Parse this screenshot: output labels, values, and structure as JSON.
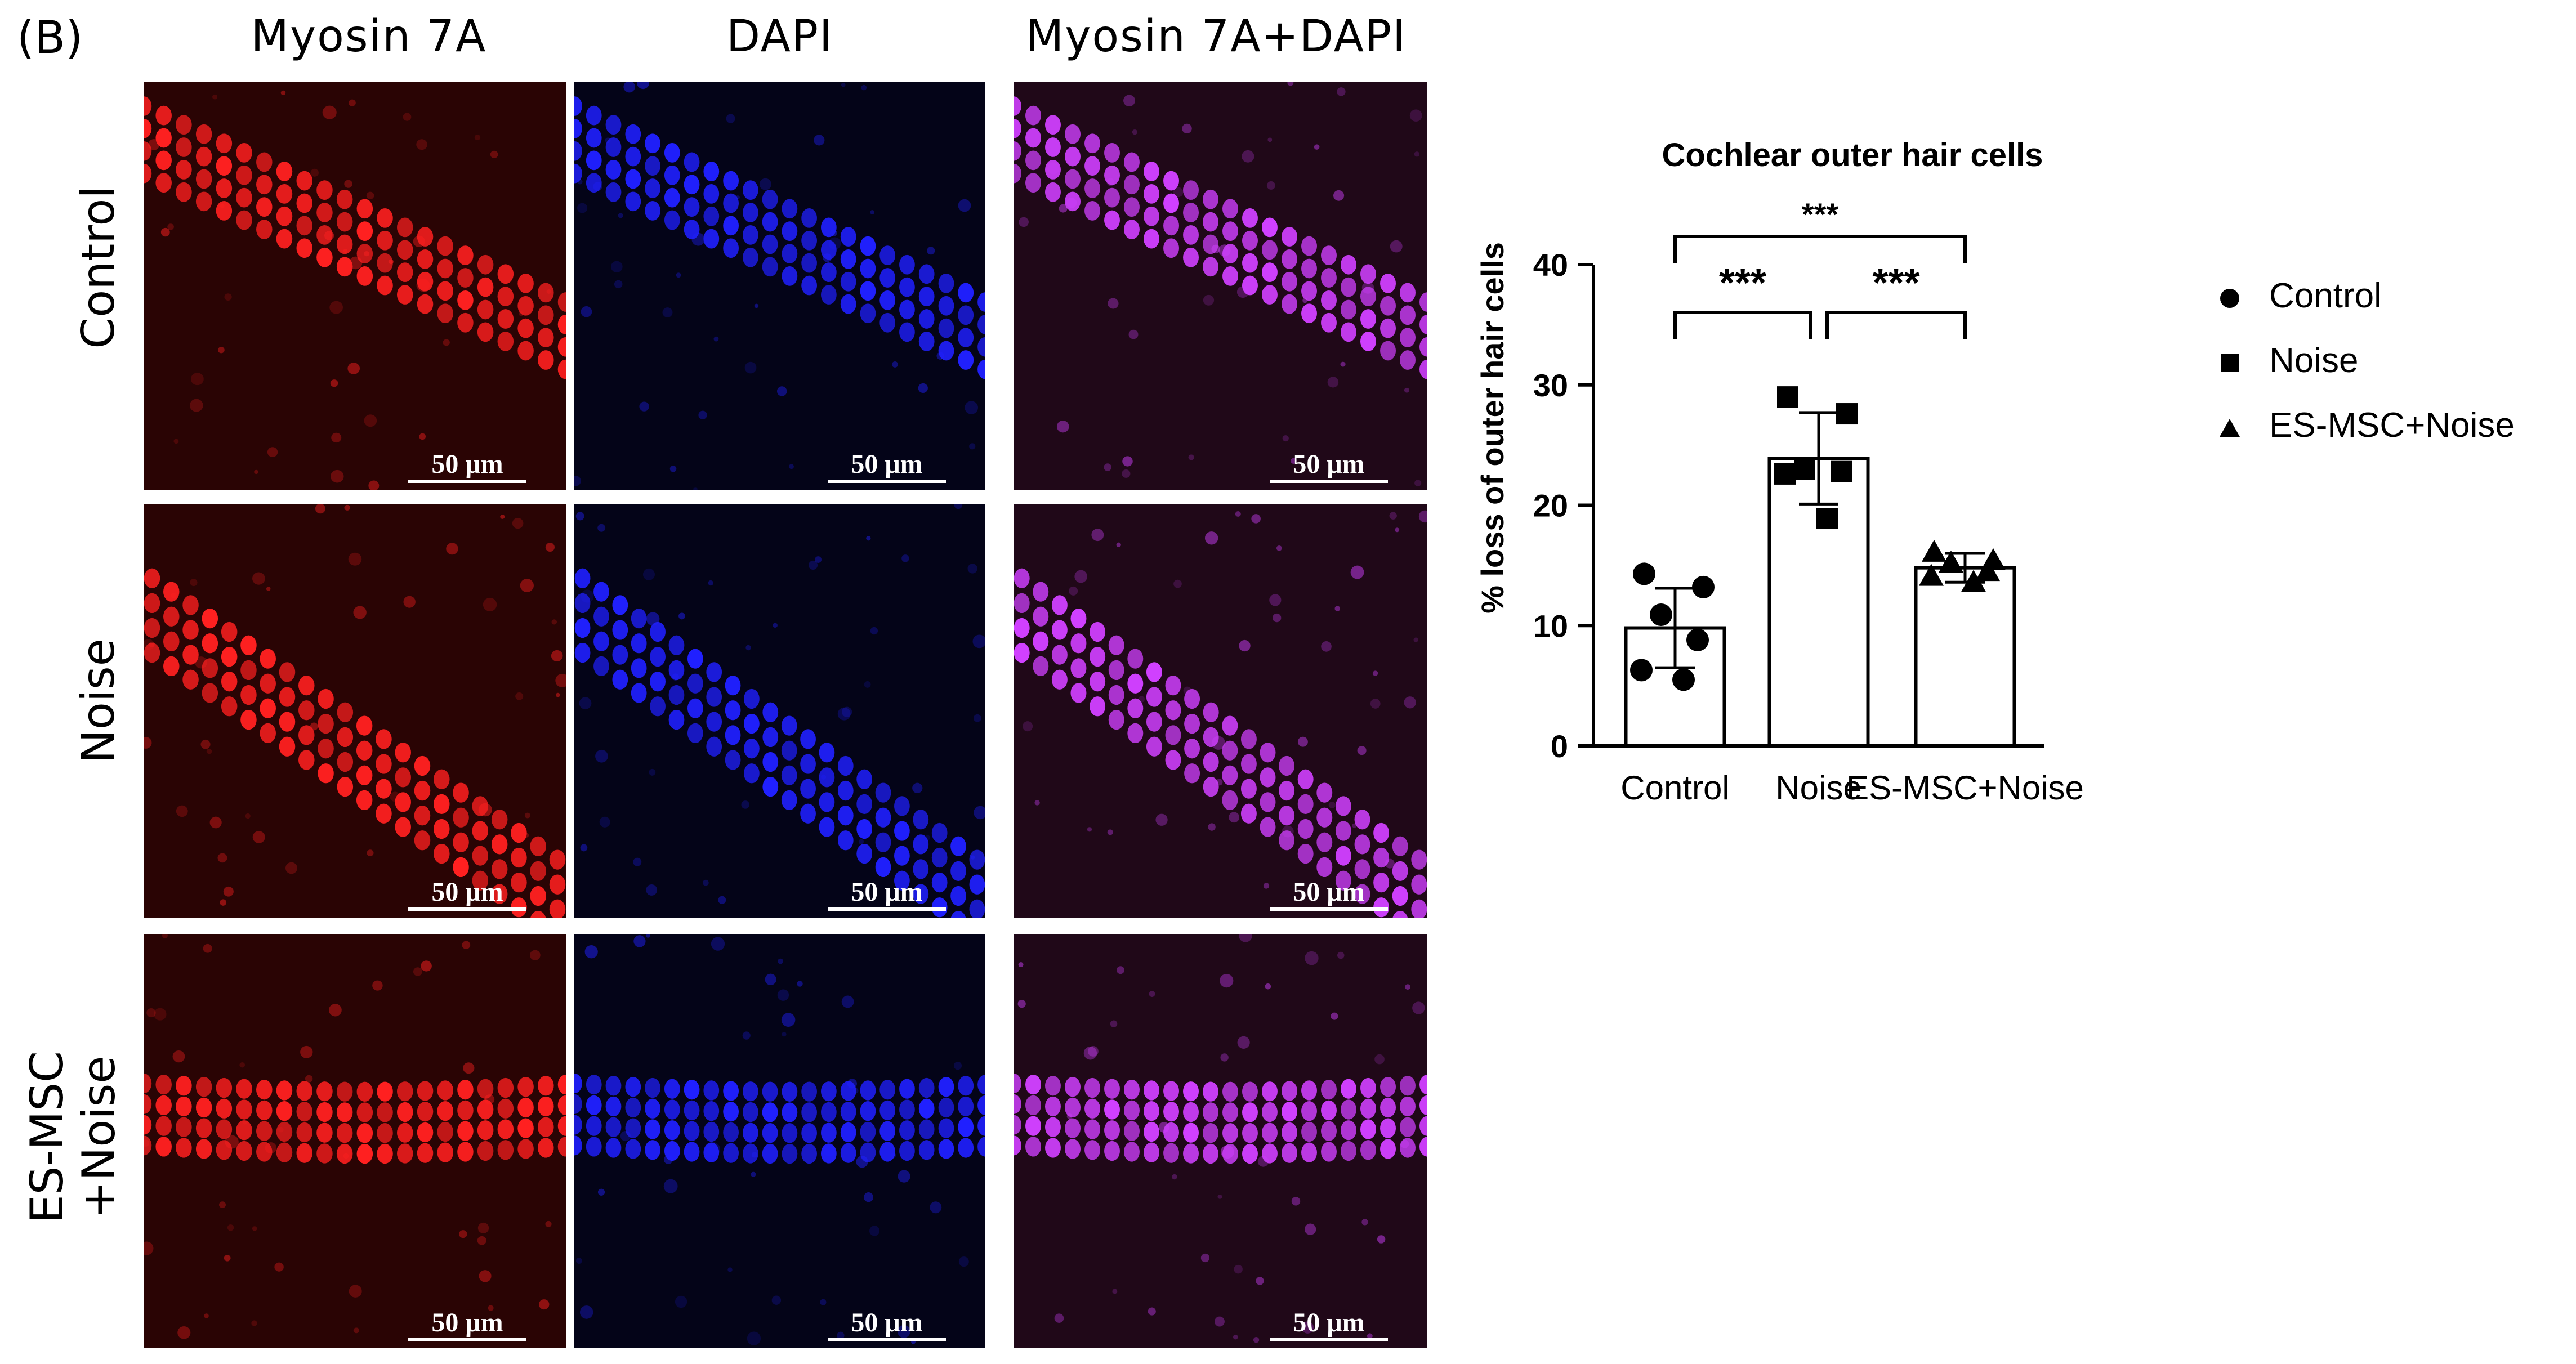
{
  "figure": {
    "panel_label": "(B)",
    "columns": [
      "Myosin 7A",
      "DAPI",
      "Myosin 7A+DAPI"
    ],
    "rows": [
      {
        "label": "Control"
      },
      {
        "label": "Noise"
      },
      {
        "label_line1": "ES-MSC",
        "label_line2": "+Noise"
      }
    ],
    "scale_bar": "50 μm",
    "channel_colors": {
      "myosin": "#ff2020",
      "dapi": "#2020ff",
      "merge": "#d040ff"
    }
  },
  "chart_data": {
    "type": "bar",
    "title": "Cochlear outer hair cells",
    "ylabel": "% loss of outer hair cells",
    "xlabel": "",
    "categories": [
      "Control",
      "Noise",
      "ES-MSC+Noise"
    ],
    "values": [
      9.8,
      23.9,
      14.8
    ],
    "error": [
      3.3,
      3.8,
      1.2
    ],
    "points": [
      [
        14.3,
        13.2,
        10.9,
        8.8,
        6.3,
        5.5
      ],
      [
        29.0,
        27.6,
        23.0,
        22.8,
        22.6,
        18.9
      ],
      [
        16.1,
        15.4,
        15.2,
        14.5,
        14.1,
        13.6
      ]
    ],
    "markers": [
      "circle",
      "square",
      "triangle"
    ],
    "yticks": [
      0,
      10,
      20,
      30,
      40
    ],
    "ylim": [
      0,
      40
    ],
    "grid": false,
    "legend_position": "right",
    "legend": [
      "Control",
      "Noise",
      "ES-MSC+Noise"
    ],
    "significance": [
      {
        "from": 0,
        "to": 2,
        "label": "***"
      },
      {
        "from": 0,
        "to": 1,
        "label": "***"
      },
      {
        "from": 1,
        "to": 2,
        "label": "***"
      }
    ]
  }
}
